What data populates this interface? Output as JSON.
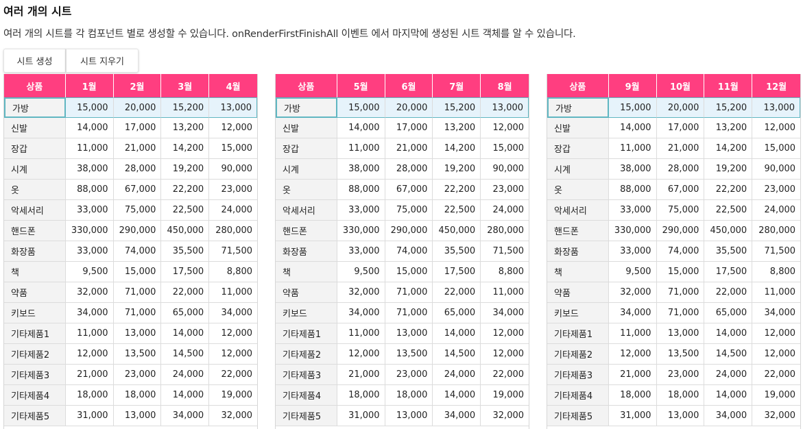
{
  "page": {
    "title": "여러 개의 시트",
    "description": "여러 개의 시트를 각 컴포넌트 별로 생성할 수 있습니다. onRenderFirstFinishAll 이벤트 에서 마지막에 생성된 시트 객체를 알 수 있습니다."
  },
  "buttons": {
    "create_label": "시트 생성",
    "clear_label": "시트 지우기"
  },
  "colors": {
    "header_bg": "#ff3e80",
    "header_text": "#ffffff",
    "name_col_bg": "#f3f3f3",
    "selected_row_bg": "#e6f3fb",
    "selection_border": "#5fb6c1"
  },
  "sheets": [
    {
      "headers": [
        "상품",
        "1월",
        "2월",
        "3월",
        "4월"
      ],
      "rows": [
        [
          "가방",
          "15,000",
          "20,000",
          "15,200",
          "13,000"
        ],
        [
          "신발",
          "14,000",
          "17,000",
          "13,200",
          "12,000"
        ],
        [
          "장갑",
          "11,000",
          "21,000",
          "14,200",
          "15,000"
        ],
        [
          "시계",
          "38,000",
          "28,000",
          "19,200",
          "90,000"
        ],
        [
          "옷",
          "88,000",
          "67,000",
          "22,200",
          "23,000"
        ],
        [
          "악세서리",
          "33,000",
          "75,000",
          "22,500",
          "24,000"
        ],
        [
          "핸드폰",
          "330,000",
          "290,000",
          "450,000",
          "280,000"
        ],
        [
          "화장품",
          "33,000",
          "74,000",
          "35,500",
          "71,500"
        ],
        [
          "책",
          "9,500",
          "15,000",
          "17,500",
          "8,800"
        ],
        [
          "약품",
          "32,000",
          "71,000",
          "22,000",
          "11,000"
        ],
        [
          "키보드",
          "34,000",
          "71,000",
          "65,000",
          "34,000"
        ],
        [
          "기타제품1",
          "11,000",
          "13,000",
          "14,000",
          "12,000"
        ],
        [
          "기타제품2",
          "12,000",
          "13,500",
          "14,500",
          "12,000"
        ],
        [
          "기타제품3",
          "21,000",
          "23,000",
          "24,000",
          "22,000"
        ],
        [
          "기타제품4",
          "18,000",
          "18,000",
          "14,000",
          "19,000"
        ],
        [
          "기타제품5",
          "31,000",
          "13,000",
          "34,000",
          "32,000"
        ]
      ]
    },
    {
      "headers": [
        "상품",
        "5월",
        "6월",
        "7월",
        "8월"
      ],
      "rows": [
        [
          "가방",
          "15,000",
          "20,000",
          "15,200",
          "13,000"
        ],
        [
          "신발",
          "14,000",
          "17,000",
          "13,200",
          "12,000"
        ],
        [
          "장갑",
          "11,000",
          "21,000",
          "14,200",
          "15,000"
        ],
        [
          "시계",
          "38,000",
          "28,000",
          "19,200",
          "90,000"
        ],
        [
          "옷",
          "88,000",
          "67,000",
          "22,200",
          "23,000"
        ],
        [
          "악세서리",
          "33,000",
          "75,000",
          "22,500",
          "24,000"
        ],
        [
          "핸드폰",
          "330,000",
          "290,000",
          "450,000",
          "280,000"
        ],
        [
          "화장품",
          "33,000",
          "74,000",
          "35,500",
          "71,500"
        ],
        [
          "책",
          "9,500",
          "15,000",
          "17,500",
          "8,800"
        ],
        [
          "약품",
          "32,000",
          "71,000",
          "22,000",
          "11,000"
        ],
        [
          "키보드",
          "34,000",
          "71,000",
          "65,000",
          "34,000"
        ],
        [
          "기타제품1",
          "11,000",
          "13,000",
          "14,000",
          "12,000"
        ],
        [
          "기타제품2",
          "12,000",
          "13,500",
          "14,500",
          "12,000"
        ],
        [
          "기타제품3",
          "21,000",
          "23,000",
          "24,000",
          "22,000"
        ],
        [
          "기타제품4",
          "18,000",
          "18,000",
          "14,000",
          "19,000"
        ],
        [
          "기타제품5",
          "31,000",
          "13,000",
          "34,000",
          "32,000"
        ]
      ]
    },
    {
      "headers": [
        "상품",
        "9월",
        "10월",
        "11월",
        "12월"
      ],
      "rows": [
        [
          "가방",
          "15,000",
          "20,000",
          "15,200",
          "13,000"
        ],
        [
          "신발",
          "14,000",
          "17,000",
          "13,200",
          "12,000"
        ],
        [
          "장갑",
          "11,000",
          "21,000",
          "14,200",
          "15,000"
        ],
        [
          "시계",
          "38,000",
          "28,000",
          "19,200",
          "90,000"
        ],
        [
          "옷",
          "88,000",
          "67,000",
          "22,200",
          "23,000"
        ],
        [
          "악세서리",
          "33,000",
          "75,000",
          "22,500",
          "24,000"
        ],
        [
          "핸드폰",
          "330,000",
          "290,000",
          "450,000",
          "280,000"
        ],
        [
          "화장품",
          "33,000",
          "74,000",
          "35,500",
          "71,500"
        ],
        [
          "책",
          "9,500",
          "15,000",
          "17,500",
          "8,800"
        ],
        [
          "약품",
          "32,000",
          "71,000",
          "22,000",
          "11,000"
        ],
        [
          "키보드",
          "34,000",
          "71,000",
          "65,000",
          "34,000"
        ],
        [
          "기타제품1",
          "11,000",
          "13,000",
          "14,000",
          "12,000"
        ],
        [
          "기타제품2",
          "12,000",
          "13,500",
          "14,500",
          "12,000"
        ],
        [
          "기타제품3",
          "21,000",
          "23,000",
          "24,000",
          "22,000"
        ],
        [
          "기타제품4",
          "18,000",
          "18,000",
          "14,000",
          "19,000"
        ],
        [
          "기타제품5",
          "31,000",
          "13,000",
          "34,000",
          "32,000"
        ]
      ]
    }
  ]
}
